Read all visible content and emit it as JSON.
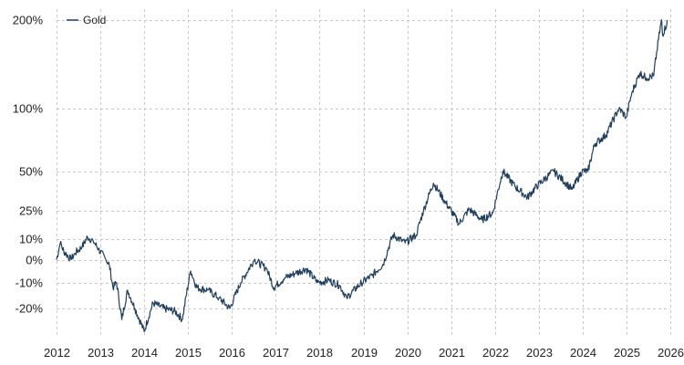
{
  "chart_data": {
    "type": "line",
    "title": "",
    "xlabel": "",
    "ylabel": "",
    "scale": "log(1+r)",
    "grid": true,
    "legend_position": "top-left",
    "colors": {
      "series": "#1f3f5f",
      "grid": "#c8c8c8",
      "text": "#222222"
    },
    "ylim": [
      -0.3,
      2.15
    ],
    "xlim": [
      "2012-01-01",
      "2026-01-01"
    ],
    "y_ticks": [
      {
        "value": 2.0,
        "label": "200%"
      },
      {
        "value": 1.0,
        "label": "100%"
      },
      {
        "value": 0.5,
        "label": "50%"
      },
      {
        "value": 0.25,
        "label": "25%"
      },
      {
        "value": 0.1,
        "label": "10%"
      },
      {
        "value": 0.0,
        "label": "0%"
      },
      {
        "value": -0.1,
        "label": "-10%"
      },
      {
        "value": -0.2,
        "label": "-20%"
      }
    ],
    "x_ticks": [
      {
        "value": "2012-01-01",
        "label": "2012"
      },
      {
        "value": "2013-01-01",
        "label": "2013"
      },
      {
        "value": "2014-01-01",
        "label": "2014"
      },
      {
        "value": "2015-01-01",
        "label": "2015"
      },
      {
        "value": "2016-01-01",
        "label": "2016"
      },
      {
        "value": "2017-01-01",
        "label": "2017"
      },
      {
        "value": "2018-01-01",
        "label": "2018"
      },
      {
        "value": "2019-01-01",
        "label": "2019"
      },
      {
        "value": "2020-01-01",
        "label": "2020"
      },
      {
        "value": "2021-01-01",
        "label": "2021"
      },
      {
        "value": "2022-01-01",
        "label": "2022"
      },
      {
        "value": "2023-01-01",
        "label": "2023"
      },
      {
        "value": "2024-01-01",
        "label": "2024"
      },
      {
        "value": "2025-01-01",
        "label": "2025"
      },
      {
        "value": "2026-01-01",
        "label": "2026"
      }
    ],
    "series": [
      {
        "name": "Gold",
        "points": [
          [
            "2012-01-01",
            0.0
          ],
          [
            "2012-02-01",
            0.08
          ],
          [
            "2012-03-01",
            0.04
          ],
          [
            "2012-05-01",
            0.0
          ],
          [
            "2012-06-01",
            0.03
          ],
          [
            "2012-08-01",
            0.06
          ],
          [
            "2012-09-15",
            0.11
          ],
          [
            "2012-11-01",
            0.09
          ],
          [
            "2012-12-15",
            0.05
          ],
          [
            "2013-02-15",
            0.0
          ],
          [
            "2013-03-15",
            -0.02
          ],
          [
            "2013-04-15",
            -0.12
          ],
          [
            "2013-05-15",
            -0.1
          ],
          [
            "2013-06-28",
            -0.24
          ],
          [
            "2013-08-15",
            -0.13
          ],
          [
            "2013-10-15",
            -0.2
          ],
          [
            "2013-12-31",
            -0.28
          ],
          [
            "2014-03-15",
            -0.18
          ],
          [
            "2014-06-15",
            -0.2
          ],
          [
            "2014-09-15",
            -0.21
          ],
          [
            "2014-11-15",
            -0.24
          ],
          [
            "2015-01-22",
            -0.05
          ],
          [
            "2015-03-15",
            -0.12
          ],
          [
            "2015-06-15",
            -0.13
          ],
          [
            "2015-09-15",
            -0.16
          ],
          [
            "2015-12-15",
            -0.2
          ],
          [
            "2016-03-15",
            -0.1
          ],
          [
            "2016-07-06",
            0.0
          ],
          [
            "2016-10-15",
            -0.04
          ],
          [
            "2016-12-15",
            -0.12
          ],
          [
            "2017-03-15",
            -0.08
          ],
          [
            "2017-06-15",
            -0.06
          ],
          [
            "2017-09-08",
            -0.04
          ],
          [
            "2017-12-15",
            -0.1
          ],
          [
            "2018-03-15",
            -0.09
          ],
          [
            "2018-06-15",
            -0.11
          ],
          [
            "2018-08-15",
            -0.16
          ],
          [
            "2018-12-15",
            -0.1
          ],
          [
            "2019-03-15",
            -0.07
          ],
          [
            "2019-06-15",
            -0.02
          ],
          [
            "2019-09-04",
            0.12
          ],
          [
            "2019-12-15",
            0.08
          ],
          [
            "2020-03-15",
            0.12
          ],
          [
            "2020-05-15",
            0.25
          ],
          [
            "2020-08-06",
            0.42
          ],
          [
            "2020-11-15",
            0.3
          ],
          [
            "2021-03-08",
            0.18
          ],
          [
            "2021-06-01",
            0.26
          ],
          [
            "2021-09-15",
            0.2
          ],
          [
            "2021-12-15",
            0.24
          ],
          [
            "2022-03-08",
            0.5
          ],
          [
            "2022-06-15",
            0.4
          ],
          [
            "2022-09-28",
            0.33
          ],
          [
            "2022-12-15",
            0.4
          ],
          [
            "2023-05-04",
            0.5
          ],
          [
            "2023-10-06",
            0.38
          ],
          [
            "2023-12-28",
            0.5
          ],
          [
            "2024-02-14",
            0.5
          ],
          [
            "2024-04-12",
            0.7
          ],
          [
            "2024-07-15",
            0.77
          ],
          [
            "2024-10-30",
            1.0
          ],
          [
            "2024-12-31",
            0.92
          ],
          [
            "2025-02-15",
            1.15
          ],
          [
            "2025-04-22",
            1.35
          ],
          [
            "2025-06-15",
            1.3
          ],
          [
            "2025-08-15",
            1.32
          ],
          [
            "2025-10-20",
            2.0
          ],
          [
            "2025-10-28",
            1.8
          ],
          [
            "2025-12-10",
            1.98
          ]
        ]
      }
    ]
  }
}
